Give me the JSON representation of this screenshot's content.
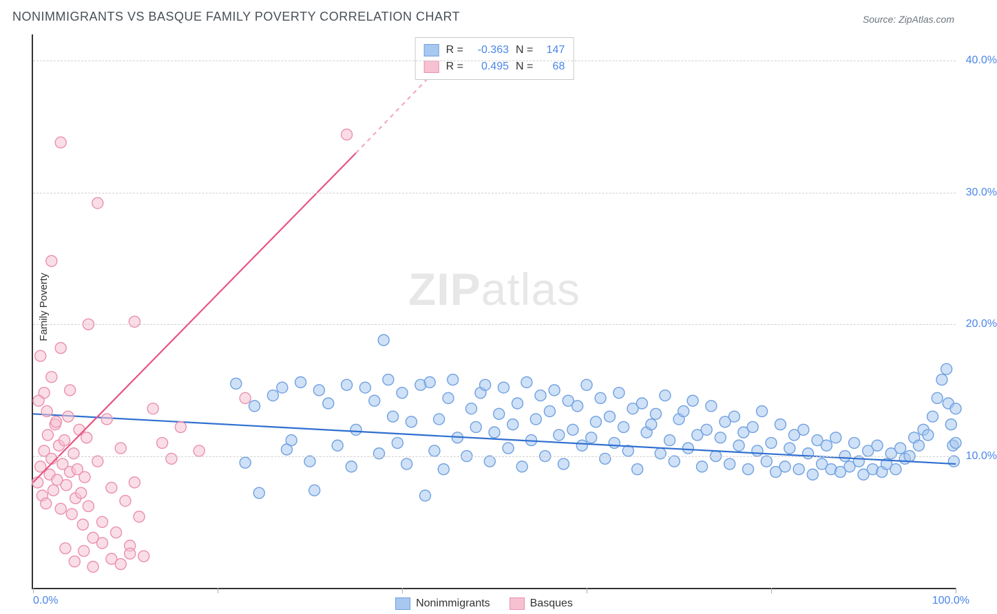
{
  "title": "NONIMMIGRANTS VS BASQUE FAMILY POVERTY CORRELATION CHART",
  "source": "Source: ZipAtlas.com",
  "watermark_a": "ZIP",
  "watermark_b": "atlas",
  "ylabel": "Family Poverty",
  "chart": {
    "type": "scatter",
    "background_color": "#ffffff",
    "grid_color": "#d0d0d0",
    "grid_dash": "4,4",
    "axis_color": "#333333",
    "xlim": [
      0,
      100
    ],
    "ylim": [
      0,
      42
    ],
    "yticks": [
      10,
      20,
      30,
      40
    ],
    "ytick_labels": [
      "10.0%",
      "20.0%",
      "30.0%",
      "40.0%"
    ],
    "ytick_color": "#4a86e8",
    "xticks": [
      0,
      20,
      40,
      60,
      80,
      100
    ],
    "xlim_labels": {
      "min": "0.0%",
      "max": "100.0%"
    },
    "xlim_label_color": "#4a86e8",
    "marker_radius": 8,
    "marker_opacity": 0.55,
    "marker_stroke_width": 1.4,
    "series": [
      {
        "key": "nonimmigrants",
        "label": "Nonimmigrants",
        "fill": "#a8c8f0",
        "stroke": "#6fa0e0",
        "line_color": "#2f6fd0",
        "line_width": 2.2,
        "R": "-0.363",
        "N": "147",
        "trend": {
          "x1": 0,
          "y1": 13.2,
          "x2": 100,
          "y2": 9.4
        },
        "points": [
          [
            22,
            15.5
          ],
          [
            23,
            9.5
          ],
          [
            24,
            13.8
          ],
          [
            24.5,
            7.2
          ],
          [
            26,
            14.6
          ],
          [
            27,
            15.2
          ],
          [
            27.5,
            10.5
          ],
          [
            28,
            11.2
          ],
          [
            29,
            15.6
          ],
          [
            30,
            9.6
          ],
          [
            30.5,
            7.4
          ],
          [
            31,
            15.0
          ],
          [
            32,
            14.0
          ],
          [
            33,
            10.8
          ],
          [
            34,
            15.4
          ],
          [
            34.5,
            9.2
          ],
          [
            35,
            12.0
          ],
          [
            36,
            15.2
          ],
          [
            37,
            14.2
          ],
          [
            37.5,
            10.2
          ],
          [
            38,
            18.8
          ],
          [
            38.5,
            15.8
          ],
          [
            39,
            13.0
          ],
          [
            39.5,
            11.0
          ],
          [
            40,
            14.8
          ],
          [
            40.5,
            9.4
          ],
          [
            41,
            12.6
          ],
          [
            42,
            15.4
          ],
          [
            42.5,
            7.0
          ],
          [
            43,
            15.6
          ],
          [
            43.5,
            10.4
          ],
          [
            44,
            12.8
          ],
          [
            44.5,
            9.0
          ],
          [
            45,
            14.4
          ],
          [
            45.5,
            15.8
          ],
          [
            46,
            11.4
          ],
          [
            47,
            10.0
          ],
          [
            47.5,
            13.6
          ],
          [
            48,
            12.2
          ],
          [
            48.5,
            14.8
          ],
          [
            49,
            15.4
          ],
          [
            49.5,
            9.6
          ],
          [
            50,
            11.8
          ],
          [
            50.5,
            13.2
          ],
          [
            51,
            15.2
          ],
          [
            51.5,
            10.6
          ],
          [
            52,
            12.4
          ],
          [
            52.5,
            14.0
          ],
          [
            53,
            9.2
          ],
          [
            53.5,
            15.6
          ],
          [
            54,
            11.2
          ],
          [
            54.5,
            12.8
          ],
          [
            55,
            14.6
          ],
          [
            55.5,
            10.0
          ],
          [
            56,
            13.4
          ],
          [
            56.5,
            15.0
          ],
          [
            57,
            11.6
          ],
          [
            57.5,
            9.4
          ],
          [
            58,
            14.2
          ],
          [
            58.5,
            12.0
          ],
          [
            59,
            13.8
          ],
          [
            59.5,
            10.8
          ],
          [
            60,
            15.4
          ],
          [
            60.5,
            11.4
          ],
          [
            61,
            12.6
          ],
          [
            61.5,
            14.4
          ],
          [
            62,
            9.8
          ],
          [
            62.5,
            13.0
          ],
          [
            63,
            11.0
          ],
          [
            63.5,
            14.8
          ],
          [
            64,
            12.2
          ],
          [
            64.5,
            10.4
          ],
          [
            65,
            13.6
          ],
          [
            65.5,
            9.0
          ],
          [
            66,
            14.0
          ],
          [
            66.5,
            11.8
          ],
          [
            67,
            12.4
          ],
          [
            67.5,
            13.2
          ],
          [
            68,
            10.2
          ],
          [
            68.5,
            14.6
          ],
          [
            69,
            11.2
          ],
          [
            69.5,
            9.6
          ],
          [
            70,
            12.8
          ],
          [
            70.5,
            13.4
          ],
          [
            71,
            10.6
          ],
          [
            71.5,
            14.2
          ],
          [
            72,
            11.6
          ],
          [
            72.5,
            9.2
          ],
          [
            73,
            12.0
          ],
          [
            73.5,
            13.8
          ],
          [
            74,
            10.0
          ],
          [
            74.5,
            11.4
          ],
          [
            75,
            12.6
          ],
          [
            75.5,
            9.4
          ],
          [
            76,
            13.0
          ],
          [
            76.5,
            10.8
          ],
          [
            77,
            11.8
          ],
          [
            77.5,
            9.0
          ],
          [
            78,
            12.2
          ],
          [
            78.5,
            10.4
          ],
          [
            79,
            13.4
          ],
          [
            79.5,
            9.6
          ],
          [
            80,
            11.0
          ],
          [
            80.5,
            8.8
          ],
          [
            81,
            12.4
          ],
          [
            81.5,
            9.2
          ],
          [
            82,
            10.6
          ],
          [
            82.5,
            11.6
          ],
          [
            83,
            9.0
          ],
          [
            83.5,
            12.0
          ],
          [
            84,
            10.2
          ],
          [
            84.5,
            8.6
          ],
          [
            85,
            11.2
          ],
          [
            85.5,
            9.4
          ],
          [
            86,
            10.8
          ],
          [
            86.5,
            9.0
          ],
          [
            87,
            11.4
          ],
          [
            87.5,
            8.8
          ],
          [
            88,
            10.0
          ],
          [
            88.5,
            9.2
          ],
          [
            89,
            11.0
          ],
          [
            89.5,
            9.6
          ],
          [
            90,
            8.6
          ],
          [
            90.5,
            10.4
          ],
          [
            91,
            9.0
          ],
          [
            91.5,
            10.8
          ],
          [
            92,
            8.8
          ],
          [
            92.5,
            9.4
          ],
          [
            93,
            10.2
          ],
          [
            93.5,
            9.0
          ],
          [
            94,
            10.6
          ],
          [
            94.5,
            9.8
          ],
          [
            95,
            10.0
          ],
          [
            95.5,
            11.4
          ],
          [
            96,
            10.8
          ],
          [
            96.5,
            12.0
          ],
          [
            97,
            11.6
          ],
          [
            97.5,
            13.0
          ],
          [
            98,
            14.4
          ],
          [
            98.5,
            15.8
          ],
          [
            99,
            16.6
          ],
          [
            99.2,
            14.0
          ],
          [
            99.5,
            12.4
          ],
          [
            99.7,
            10.8
          ],
          [
            99.8,
            9.6
          ],
          [
            100,
            11.0
          ],
          [
            100,
            13.6
          ]
        ]
      },
      {
        "key": "basques",
        "label": "Basques",
        "fill": "#f6c2d1",
        "stroke": "#ea8fb0",
        "line_color": "#e75480",
        "line_width": 2.2,
        "R": "0.495",
        "N": "68",
        "trend": {
          "x1": 0,
          "y1": 8.0,
          "x2": 35,
          "y2": 33.0
        },
        "trend_dash_ext": {
          "x1": 35,
          "y1": 33.0,
          "x2": 46,
          "y2": 41.0
        },
        "points": [
          [
            0.5,
            8.0
          ],
          [
            0.8,
            9.2
          ],
          [
            1.0,
            7.0
          ],
          [
            1.2,
            10.4
          ],
          [
            1.4,
            6.4
          ],
          [
            1.6,
            11.6
          ],
          [
            1.8,
            8.6
          ],
          [
            2.0,
            9.8
          ],
          [
            2.2,
            7.4
          ],
          [
            2.4,
            12.4
          ],
          [
            2.6,
            8.2
          ],
          [
            2.8,
            10.8
          ],
          [
            3.0,
            6.0
          ],
          [
            3.2,
            9.4
          ],
          [
            3.4,
            11.2
          ],
          [
            3.6,
            7.8
          ],
          [
            3.8,
            13.0
          ],
          [
            4.0,
            8.8
          ],
          [
            4.2,
            5.6
          ],
          [
            4.4,
            10.2
          ],
          [
            4.6,
            6.8
          ],
          [
            4.8,
            9.0
          ],
          [
            5.0,
            12.0
          ],
          [
            5.2,
            7.2
          ],
          [
            5.4,
            4.8
          ],
          [
            5.6,
            8.4
          ],
          [
            5.8,
            11.4
          ],
          [
            6.0,
            6.2
          ],
          [
            6.5,
            3.8
          ],
          [
            7.0,
            9.6
          ],
          [
            7.5,
            5.0
          ],
          [
            8.0,
            12.8
          ],
          [
            8.5,
            7.6
          ],
          [
            9.0,
            4.2
          ],
          [
            9.5,
            10.6
          ],
          [
            10.0,
            6.6
          ],
          [
            10.5,
            3.2
          ],
          [
            11.0,
            8.0
          ],
          [
            11.5,
            5.4
          ],
          [
            12.0,
            2.4
          ],
          [
            0.8,
            17.6
          ],
          [
            1.2,
            14.8
          ],
          [
            2.0,
            16.0
          ],
          [
            3.0,
            18.2
          ],
          [
            4.0,
            15.0
          ],
          [
            1.5,
            13.4
          ],
          [
            2.5,
            12.6
          ],
          [
            0.6,
            14.2
          ],
          [
            2.0,
            24.8
          ],
          [
            6.0,
            20.0
          ],
          [
            11.0,
            20.2
          ],
          [
            3.0,
            33.8
          ],
          [
            7.0,
            29.2
          ],
          [
            34.0,
            34.4
          ],
          [
            4.5,
            2.0
          ],
          [
            5.5,
            2.8
          ],
          [
            6.5,
            1.6
          ],
          [
            7.5,
            3.4
          ],
          [
            8.5,
            2.2
          ],
          [
            3.5,
            3.0
          ],
          [
            9.5,
            1.8
          ],
          [
            10.5,
            2.6
          ],
          [
            23.0,
            14.4
          ],
          [
            14.0,
            11.0
          ],
          [
            15.0,
            9.8
          ],
          [
            16.0,
            12.2
          ],
          [
            18.0,
            10.4
          ],
          [
            13.0,
            13.6
          ]
        ]
      }
    ]
  },
  "legend": {
    "items": [
      {
        "label": "Nonimmigrants",
        "fill": "#a8c8f0",
        "stroke": "#6fa0e0"
      },
      {
        "label": "Basques",
        "fill": "#f6c2d1",
        "stroke": "#ea8fb0"
      }
    ]
  }
}
